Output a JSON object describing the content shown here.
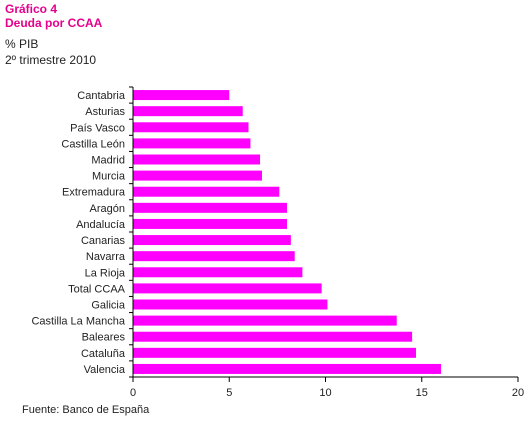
{
  "header": {
    "figure_label": "Gráfico 4",
    "title": "Deuda por CCAA",
    "unit": "% PIB",
    "period": "2º trimestre 2010"
  },
  "source": "Fuente: Banco de España",
  "chart_data": {
    "type": "bar",
    "orientation": "horizontal",
    "categories": [
      "Cantabria",
      "Asturias",
      "País Vasco",
      "Castilla León",
      "Madrid",
      "Murcia",
      "Extremadura",
      "Aragón",
      "Andalucía",
      "Canarias",
      "Navarra",
      "La Rioja",
      "Total CCAA",
      "Galicia",
      "Castilla La Mancha",
      "Baleares",
      "Cataluña",
      "Valencia"
    ],
    "values": [
      5.0,
      5.7,
      6.0,
      6.1,
      6.6,
      6.7,
      7.6,
      8.0,
      8.0,
      8.2,
      8.4,
      8.8,
      9.8,
      10.1,
      13.7,
      14.5,
      14.7,
      16.0
    ],
    "xlim": [
      0,
      20
    ],
    "xticks": [
      0,
      5,
      10,
      15,
      20
    ],
    "bar_color": "#ff00ff",
    "grid": false
  }
}
